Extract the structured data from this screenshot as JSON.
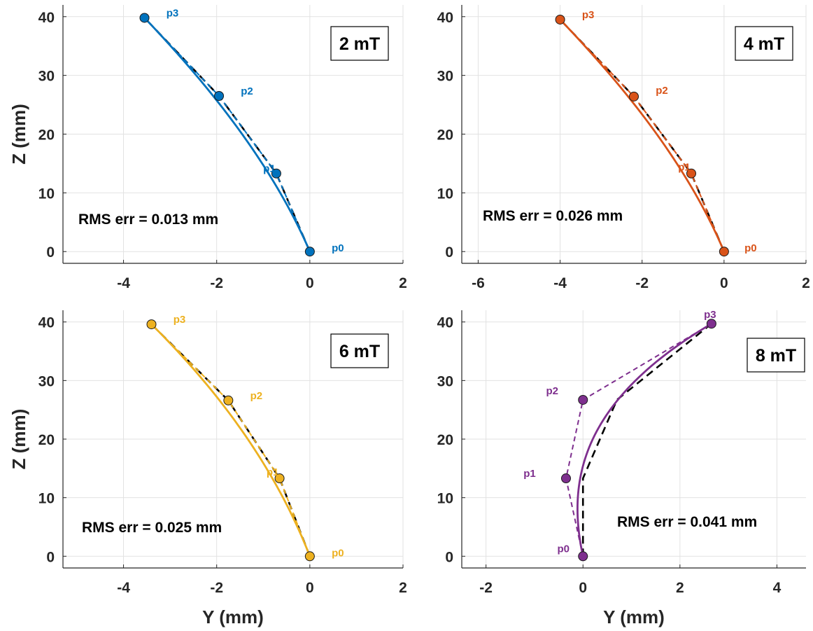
{
  "figure": {
    "xlabel": "Y (mm)",
    "ylabel": "Z (mm)",
    "type": "multi-panel line/scatter"
  },
  "chart_data": [
    {
      "type": "line",
      "field_label": "2 mT",
      "rms_label": "RMS err = 0.013 mm",
      "color": "#0072BD",
      "xlim": [
        -5.3,
        2
      ],
      "ylim": [
        -2,
        42
      ],
      "xticks": [
        -4,
        -2,
        0,
        2
      ],
      "yticks": [
        0,
        10,
        20,
        30,
        40
      ],
      "xlabel": "",
      "ylabel": "Z (mm)",
      "control_points": [
        {
          "name": "p0",
          "y": 0,
          "z": 0
        },
        {
          "name": "p1",
          "y": -0.72,
          "z": 13.3
        },
        {
          "name": "p2",
          "y": -1.95,
          "z": 26.5
        },
        {
          "name": "p3",
          "y": -3.55,
          "z": 39.8
        }
      ],
      "reference_curve": [
        [
          0,
          0
        ],
        [
          -0.72,
          13.3
        ],
        [
          -1.95,
          26.5
        ],
        [
          -3.55,
          39.8
        ]
      ]
    },
    {
      "type": "line",
      "field_label": "4 mT",
      "rms_label": "RMS err = 0.026 mm",
      "color": "#D95319",
      "xlim": [
        -6.4,
        2
      ],
      "ylim": [
        -2,
        42
      ],
      "xticks": [
        -6,
        -4,
        -2,
        0,
        2
      ],
      "yticks": [
        0,
        10,
        20,
        30,
        40
      ],
      "xlabel": "",
      "ylabel": "",
      "control_points": [
        {
          "name": "p0",
          "y": 0,
          "z": 0
        },
        {
          "name": "p1",
          "y": -0.8,
          "z": 13.3
        },
        {
          "name": "p2",
          "y": -2.2,
          "z": 26.4
        },
        {
          "name": "p3",
          "y": -4.0,
          "z": 39.5
        }
      ],
      "reference_curve": [
        [
          0,
          0
        ],
        [
          -0.8,
          13.3
        ],
        [
          -2.2,
          26.4
        ],
        [
          -4.0,
          39.5
        ]
      ]
    },
    {
      "type": "line",
      "field_label": "6 mT",
      "rms_label": "RMS err = 0.025 mm",
      "color": "#EDB120",
      "xlim": [
        -5.3,
        2
      ],
      "ylim": [
        -2,
        42
      ],
      "xticks": [
        -4,
        -2,
        0,
        2
      ],
      "yticks": [
        0,
        10,
        20,
        30,
        40
      ],
      "xlabel": "Y (mm)",
      "ylabel": "Z (mm)",
      "control_points": [
        {
          "name": "p0",
          "y": 0,
          "z": 0
        },
        {
          "name": "p1",
          "y": -0.65,
          "z": 13.3
        },
        {
          "name": "p2",
          "y": -1.75,
          "z": 26.6
        },
        {
          "name": "p3",
          "y": -3.4,
          "z": 39.6
        }
      ],
      "reference_curve": [
        [
          0,
          0
        ],
        [
          -0.65,
          13.3
        ],
        [
          -1.75,
          26.6
        ],
        [
          -3.4,
          39.6
        ]
      ]
    },
    {
      "type": "line",
      "field_label": "8 mT",
      "rms_label": "RMS err = 0.041 mm",
      "color": "#7E2F8E",
      "xlim": [
        -2.5,
        4.6
      ],
      "ylim": [
        -2,
        42
      ],
      "xticks": [
        -2,
        0,
        2,
        4
      ],
      "yticks": [
        0,
        10,
        20,
        30,
        40
      ],
      "xlabel": "Y (mm)",
      "ylabel": "",
      "control_points": [
        {
          "name": "p0",
          "y": 0,
          "z": 0
        },
        {
          "name": "p1",
          "y": -0.35,
          "z": 13.3
        },
        {
          "name": "p2",
          "y": 0,
          "z": 26.7
        },
        {
          "name": "p3",
          "y": 2.65,
          "z": 39.7
        }
      ],
      "reference_curve": [
        [
          0,
          0
        ],
        [
          0,
          13.3
        ],
        [
          0.7,
          26.7
        ],
        [
          2.65,
          39.7
        ]
      ]
    }
  ]
}
